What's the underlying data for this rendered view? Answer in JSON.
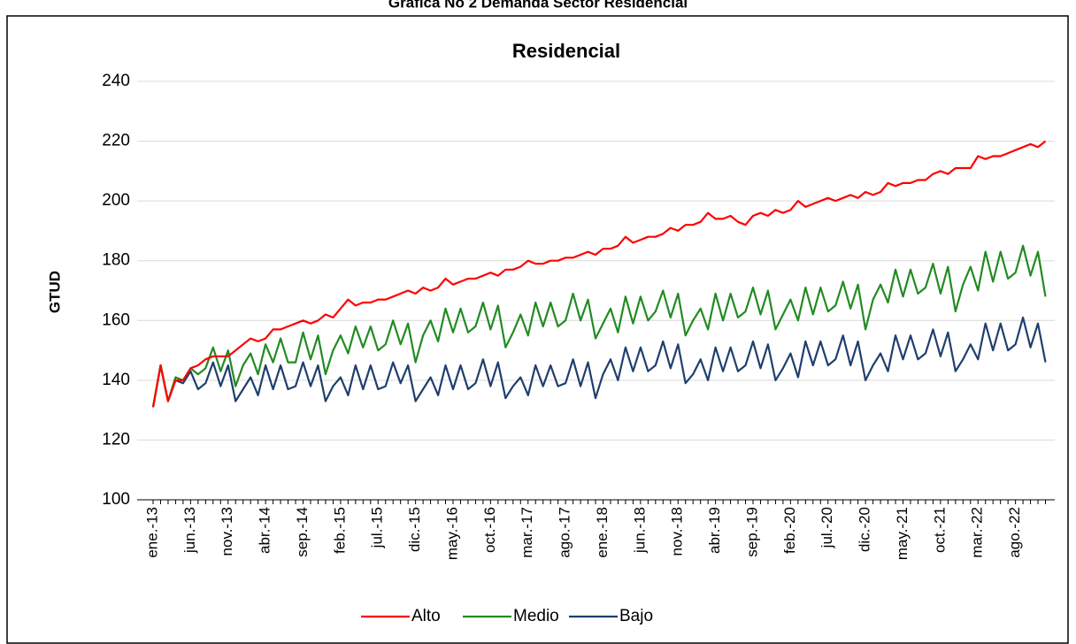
{
  "header": {
    "title": "Gráfica No 2 Demanda Sector Residencial"
  },
  "chart_data": {
    "type": "line",
    "title": "Residencial",
    "y_label": "GTUD",
    "categories": [
      "ene.-13",
      null,
      null,
      null,
      null,
      "jun.-13",
      null,
      null,
      null,
      null,
      "nov.-13",
      null,
      null,
      null,
      null,
      "abr.-14",
      null,
      null,
      null,
      null,
      "sep.-14",
      null,
      null,
      null,
      null,
      "feb.-15",
      null,
      null,
      null,
      null,
      "jul.-15",
      null,
      null,
      null,
      null,
      "dic.-15",
      null,
      null,
      null,
      null,
      "may.-16",
      null,
      null,
      null,
      null,
      "oct.-16",
      null,
      null,
      null,
      null,
      "mar.-17",
      null,
      null,
      null,
      null,
      "ago.-17",
      null,
      null,
      null,
      null,
      "ene.-18",
      null,
      null,
      null,
      null,
      "jun.-18",
      null,
      null,
      null,
      null,
      "nov.-18",
      null,
      null,
      null,
      null,
      "abr.-19",
      null,
      null,
      null,
      null,
      "sep.-19",
      null,
      null,
      null,
      null,
      "feb.-20",
      null,
      null,
      null,
      null,
      "jul.-20",
      null,
      null,
      null,
      null,
      "dic.-20",
      null,
      null,
      null,
      null,
      "may.-21",
      null,
      null,
      null,
      null,
      "oct.-21",
      null,
      null,
      null,
      null,
      "mar.-22",
      null,
      null,
      null,
      null,
      "ago.-22",
      null,
      null,
      null,
      null
    ],
    "series": [
      {
        "name": "Alto",
        "color": "#ff0000",
        "values": [
          131,
          145,
          133,
          140,
          140,
          144,
          145,
          147,
          148,
          148,
          148,
          150,
          152,
          154,
          153,
          154,
          157,
          157,
          158,
          159,
          160,
          159,
          160,
          162,
          161,
          164,
          167,
          165,
          166,
          166,
          167,
          167,
          168,
          169,
          170,
          169,
          171,
          170,
          171,
          174,
          172,
          173,
          174,
          174,
          175,
          176,
          175,
          177,
          177,
          178,
          180,
          179,
          179,
          180,
          180,
          181,
          181,
          182,
          183,
          182,
          184,
          184,
          185,
          188,
          186,
          187,
          188,
          188,
          189,
          191,
          190,
          192,
          192,
          193,
          196,
          194,
          194,
          195,
          193,
          192,
          195,
          196,
          195,
          197,
          196,
          197,
          200,
          198,
          199,
          200,
          201,
          200,
          201,
          202,
          201,
          203,
          202,
          203,
          206,
          205,
          206,
          206,
          207,
          207,
          209,
          210,
          209,
          211,
          211,
          211,
          215,
          214,
          215,
          215,
          216,
          217,
          218,
          219,
          218,
          220
        ]
      },
      {
        "name": "Medio",
        "color": "#228b22",
        "values": [
          131,
          145,
          133,
          141,
          140,
          144,
          142,
          144,
          151,
          143,
          150,
          138,
          145,
          149,
          142,
          152,
          146,
          154,
          146,
          146,
          156,
          147,
          155,
          142,
          150,
          155,
          149,
          158,
          151,
          158,
          150,
          152,
          160,
          152,
          159,
          146,
          155,
          160,
          153,
          164,
          156,
          164,
          156,
          158,
          166,
          157,
          165,
          151,
          156,
          162,
          155,
          166,
          158,
          166,
          158,
          160,
          169,
          160,
          167,
          154,
          159,
          164,
          156,
          168,
          159,
          168,
          160,
          163,
          170,
          161,
          169,
          155,
          160,
          164,
          157,
          169,
          160,
          169,
          161,
          163,
          171,
          162,
          170,
          157,
          162,
          167,
          160,
          171,
          162,
          171,
          163,
          165,
          173,
          164,
          172,
          157,
          167,
          172,
          166,
          177,
          168,
          177,
          169,
          171,
          179,
          169,
          178,
          163,
          172,
          178,
          170,
          183,
          173,
          183,
          174,
          176,
          185,
          175,
          183,
          168
        ]
      },
      {
        "name": "Bajo",
        "color": "#1f3f6e",
        "values": [
          131,
          145,
          133,
          140,
          139,
          143,
          137,
          139,
          146,
          138,
          145,
          133,
          137,
          141,
          135,
          145,
          137,
          145,
          137,
          138,
          146,
          138,
          145,
          133,
          138,
          141,
          135,
          145,
          137,
          145,
          137,
          138,
          146,
          139,
          145,
          133,
          137,
          141,
          135,
          145,
          137,
          145,
          137,
          139,
          147,
          138,
          146,
          134,
          138,
          141,
          135,
          145,
          138,
          145,
          138,
          139,
          147,
          138,
          146,
          134,
          142,
          147,
          140,
          151,
          143,
          151,
          143,
          145,
          153,
          144,
          152,
          139,
          142,
          147,
          140,
          151,
          143,
          151,
          143,
          145,
          153,
          144,
          152,
          140,
          144,
          149,
          141,
          153,
          145,
          153,
          145,
          147,
          155,
          145,
          153,
          140,
          145,
          149,
          143,
          155,
          147,
          155,
          147,
          149,
          157,
          148,
          156,
          143,
          147,
          152,
          147,
          159,
          150,
          159,
          150,
          152,
          161,
          151,
          159,
          146
        ]
      }
    ],
    "ylim": [
      100,
      240
    ],
    "yticks": [
      100,
      120,
      140,
      160,
      180,
      200,
      220,
      240
    ],
    "grid": true,
    "legend": "bottom"
  }
}
